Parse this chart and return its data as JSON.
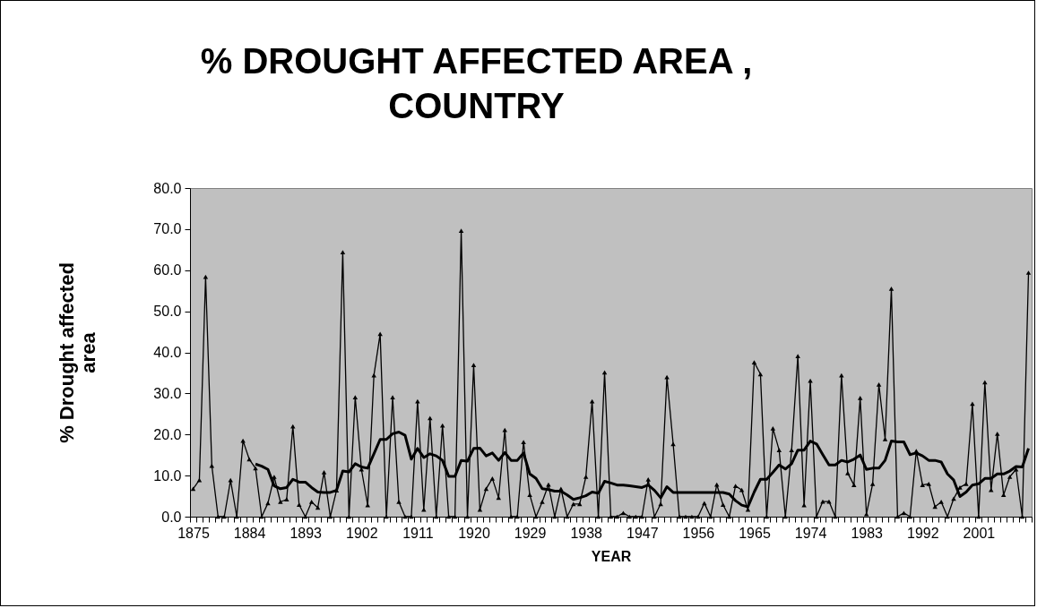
{
  "chart_data": {
    "type": "line",
    "title": "% DROUGHT AFFECTED AREA , COUNTRY",
    "xlabel": "YEAR",
    "ylabel": "% Drought affected area",
    "categories": [
      "1875",
      null,
      null,
      null,
      null,
      null,
      null,
      null,
      null,
      "1884",
      null,
      null,
      null,
      null,
      null,
      null,
      null,
      null,
      "1893",
      null,
      null,
      null,
      null,
      null,
      null,
      null,
      null,
      "1902",
      null,
      null,
      null,
      null,
      null,
      null,
      null,
      null,
      "1911",
      null,
      null,
      null,
      null,
      null,
      null,
      null,
      null,
      "1920",
      null,
      null,
      null,
      null,
      null,
      null,
      null,
      null,
      "1929",
      null,
      null,
      null,
      null,
      null,
      null,
      null,
      null,
      "1938",
      null,
      null,
      null,
      null,
      null,
      null,
      null,
      null,
      "1947",
      null,
      null,
      null,
      null,
      null,
      null,
      null,
      null,
      "1956",
      null,
      null,
      null,
      null,
      null,
      null,
      null,
      null,
      "1965",
      null,
      null,
      null,
      null,
      null,
      null,
      null,
      null,
      "1974",
      null,
      null,
      null,
      null,
      null,
      null,
      null,
      null,
      "1983",
      null,
      null,
      null,
      null,
      null,
      null,
      null,
      null,
      "1992",
      null,
      null,
      null,
      null,
      null,
      null,
      null,
      null,
      "2001",
      null,
      null,
      null,
      null,
      null,
      null,
      null,
      null
    ],
    "series": [
      {
        "color": "#000000",
        "marker": "triangle",
        "values": [
          6.8,
          8.9,
          58.4,
          12.4,
          0,
          0,
          8.9,
          0,
          18.5,
          14.0,
          11.8,
          0,
          3.3,
          9.7,
          3.6,
          4.2,
          22.0,
          2.9,
          0,
          3.6,
          2.2,
          10.8,
          0,
          6.4,
          64.4,
          0,
          29.1,
          11.5,
          2.8,
          34.4,
          44.5,
          0,
          29.1,
          3.6,
          0,
          0,
          28.1,
          1.7,
          24.0,
          0,
          22.2,
          0,
          0,
          69.6,
          0,
          36.9,
          1.7,
          6.8,
          9.3,
          4.6,
          21.1,
          0,
          0,
          18.2,
          5.3,
          0,
          3.6,
          7.8,
          0,
          6.8,
          0,
          3.1,
          3.1,
          9.7,
          28.1,
          0,
          35.1,
          0,
          0,
          0.9,
          0,
          0,
          0,
          9.1,
          0,
          3.1,
          34.0,
          17.7,
          0,
          0,
          0,
          0,
          3.3,
          0,
          7.8,
          2.9,
          0,
          7.5,
          6.5,
          1.7,
          37.6,
          34.7,
          0,
          21.5,
          16.2,
          0,
          16.2,
          39.1,
          2.8,
          33.1,
          0,
          3.7,
          3.7,
          0,
          34.4,
          10.6,
          7.7,
          28.9,
          0.6,
          8.0,
          32.2,
          18.9,
          55.5,
          0,
          0.9,
          0,
          16.0,
          7.7,
          8.0,
          2.4,
          3.6,
          0,
          4.4,
          7.1,
          8.0,
          27.5,
          0,
          32.7,
          6.5,
          20.2,
          5.3,
          9.7,
          11.5,
          0,
          59.4
        ]
      },
      {
        "color": "#000000",
        "marker": "none",
        "values": [
          null,
          null,
          null,
          null,
          null,
          null,
          null,
          null,
          null,
          null,
          12.8,
          12.3,
          11.5,
          7.5,
          6.8,
          7.1,
          9.1,
          8.4,
          8.4,
          7.1,
          6.0,
          5.9,
          5.9,
          6.4,
          11.1,
          10.9,
          12.9,
          12.1,
          11.8,
          15.3,
          18.8,
          18.8,
          20.2,
          20.6,
          19.8,
          14.0,
          16.6,
          14.4,
          15.3,
          14.8,
          13.7,
          9.8,
          9.8,
          13.7,
          13.5,
          16.6,
          16.7,
          14.8,
          15.5,
          13.7,
          15.6,
          13.7,
          13.7,
          15.5,
          10.4,
          9.3,
          6.8,
          6.6,
          6.2,
          6.2,
          5.3,
          4.2,
          4.6,
          5.1,
          6.0,
          5.7,
          8.6,
          8.2,
          7.7,
          7.7,
          7.5,
          7.3,
          7.1,
          7.7,
          6.4,
          4.6,
          7.3,
          5.9,
          5.9,
          5.9,
          5.9,
          5.9,
          5.9,
          5.9,
          5.9,
          5.9,
          5.5,
          3.9,
          2.8,
          2.4,
          6.0,
          9.1,
          9.1,
          10.8,
          12.6,
          11.6,
          12.9,
          16.2,
          16.2,
          18.4,
          17.7,
          15.1,
          12.6,
          12.6,
          13.7,
          13.3,
          14.0,
          15.0,
          11.5,
          11.8,
          11.8,
          13.7,
          18.4,
          18.2,
          18.2,
          15.1,
          15.5,
          14.8,
          13.7,
          13.7,
          13.3,
          10.4,
          8.9,
          4.9,
          6.0,
          7.7,
          8.0,
          9.3,
          9.3,
          10.4,
          10.4,
          11.1,
          12.2,
          12.1,
          16.6
        ]
      }
    ],
    "ylim": [
      0,
      80
    ],
    "yticks": [
      {
        "value": 0,
        "label": "0.0"
      },
      {
        "value": 10,
        "label": "10.0"
      },
      {
        "value": 20,
        "label": "20.0"
      },
      {
        "value": 30,
        "label": "30.0"
      },
      {
        "value": 40,
        "label": "40.0"
      },
      {
        "value": 50,
        "label": "50.0"
      },
      {
        "value": 60,
        "label": "60.0"
      },
      {
        "value": 70,
        "label": "70.0"
      },
      {
        "value": 80,
        "label": "80.0"
      }
    ],
    "line_style": "solid"
  }
}
